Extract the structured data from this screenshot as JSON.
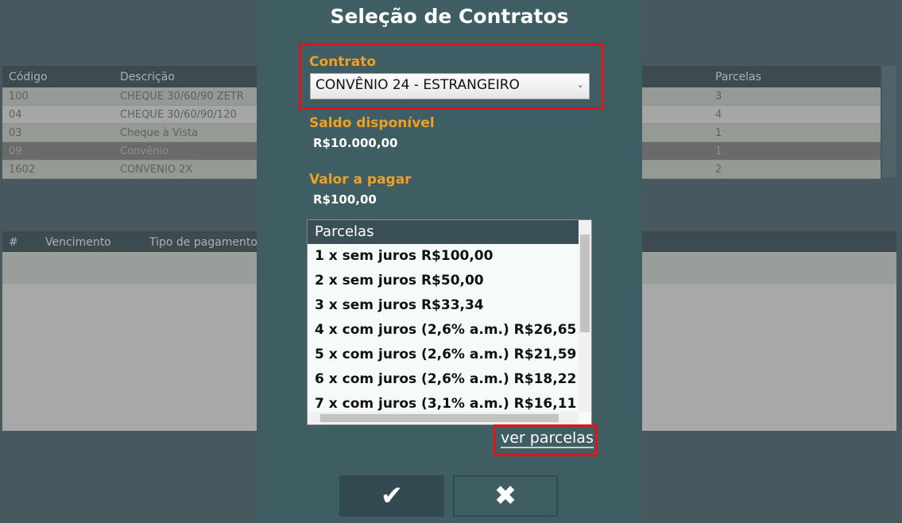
{
  "background_table": {
    "columns": [
      "Código",
      "Descrição",
      "Parcelas"
    ],
    "rows": [
      [
        "100",
        "CHEQUE 30/60/90 ZETR",
        "3"
      ],
      [
        "04",
        "CHEQUE 30/60/90/120",
        "4"
      ],
      [
        "03",
        "Cheque à Vista",
        "1"
      ],
      [
        "09",
        "Convênio",
        "1"
      ],
      [
        "1602",
        "CONVENIO 2X",
        "2"
      ]
    ],
    "selected_index": 3
  },
  "installments_table": {
    "columns": [
      "#",
      "Vencimento",
      "Tipo de pagamento"
    ]
  },
  "dialog": {
    "title": "Seleção de Contratos",
    "contract_label": "Contrato",
    "contract_value": "CONVÊNIO 24 - ESTRANGEIRO",
    "balance_label": "Saldo disponível",
    "balance_value": "R$10.000,00",
    "amount_label": "Valor a pagar",
    "amount_value": "R$100,00",
    "installments_header": "Parcelas",
    "installments": [
      "1 x sem juros R$100,00",
      "2 x sem juros R$50,00",
      "3 x sem juros R$33,34",
      "4 x com juros (2,6% a.m.) R$26,65",
      "5 x com juros (2,6% a.m.) R$21,59",
      "6 x com juros (2,6% a.m.) R$18,22",
      "7 x com juros (3,1% a.m.) R$16,11"
    ],
    "view_installments_link": "ver parcelas",
    "confirm_icon": "check-icon",
    "cancel_icon": "close-icon",
    "highlight_color": "#e0141b",
    "label_color": "#f0a020"
  }
}
